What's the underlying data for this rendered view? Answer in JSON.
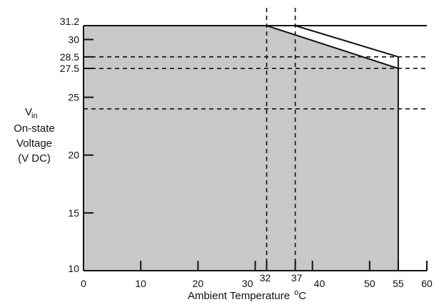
{
  "chart_data": {
    "type": "area",
    "title": "",
    "xlabel": "Ambient Temperature",
    "xlabel_unit_sup": "o",
    "xlabel_unit": "C",
    "ylabel": {
      "symbol": "V",
      "subscript": "in",
      "line2": "On-state",
      "line3": "Voltage",
      "line4": "(V DC)"
    },
    "xlim": [
      0,
      60
    ],
    "ylim": [
      10,
      31.2
    ],
    "x_ticks": [
      0,
      10,
      20,
      30,
      32,
      37,
      40,
      50,
      55,
      60
    ],
    "y_ticks": [
      10,
      15,
      20,
      25,
      27.5,
      28.5,
      30,
      31.2
    ],
    "colors": {
      "fill": "#c8c8c8",
      "line": "#111111"
    },
    "series": [
      {
        "points": [
          [
            0,
            31.2
          ],
          [
            32,
            31.2
          ],
          [
            55,
            27.5
          ]
        ],
        "filled": true
      },
      {
        "points": [
          [
            37,
            31.2
          ],
          [
            55,
            28.5
          ]
        ],
        "filled": false
      }
    ],
    "top_line": {
      "y": 31.2,
      "x": [
        0,
        60
      ]
    },
    "dashed_vertical": [
      32,
      37
    ],
    "dashed_horizontal": [
      {
        "y": 28.5,
        "x": [
          0,
          60
        ]
      },
      {
        "y": 27.5,
        "x": [
          0,
          60
        ]
      },
      {
        "y": 24,
        "x": [
          0,
          60
        ]
      }
    ]
  }
}
